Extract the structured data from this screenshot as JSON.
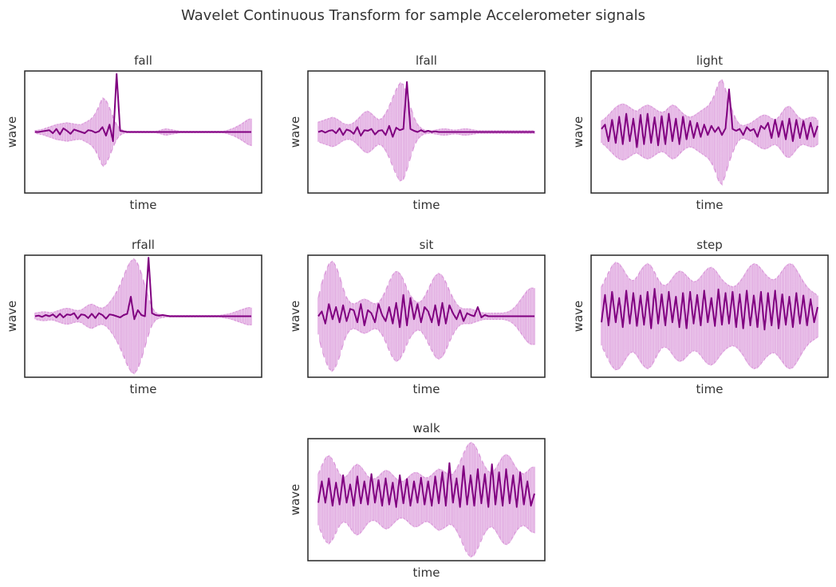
{
  "chart_data": {
    "type": "line",
    "title": "Wavelet Continuous Transform for sample Accelerometer signals",
    "xlabel": "time",
    "ylabel": "wave",
    "colors": {
      "envelope": "#dda0dd",
      "signal": "#800080",
      "frame": "#262626"
    },
    "ticks": "hidden",
    "panels": [
      {
        "title": "fall",
        "ylim": [
          -1.0,
          1.0
        ],
        "signal": [
          0,
          0,
          0.01,
          0.02,
          0.03,
          -0.02,
          0.05,
          -0.04,
          0.06,
          0.02,
          -0.03,
          0.04,
          0.02,
          0.0,
          -0.02,
          0.03,
          0.02,
          -0.01,
          0.01,
          0.08,
          -0.06,
          0.12,
          -0.15,
          0.95,
          0.02,
          0.01,
          0.0,
          0,
          0,
          0,
          0,
          0,
          0,
          0,
          0,
          0,
          0,
          0,
          0,
          0,
          0,
          0,
          0,
          0,
          0,
          0,
          0,
          0,
          0,
          0,
          0,
          0,
          0,
          0,
          0,
          0,
          0,
          0,
          0,
          0,
          0,
          0
        ],
        "envelope": [
          0.02,
          0.03,
          0.04,
          0.06,
          0.08,
          0.1,
          0.12,
          0.13,
          0.14,
          0.15,
          0.14,
          0.13,
          0.12,
          0.12,
          0.15,
          0.18,
          0.22,
          0.3,
          0.42,
          0.56,
          0.52,
          0.4,
          0.25,
          0.12,
          0.05,
          0.02,
          0.01,
          0.01,
          0.01,
          0.01,
          0.01,
          0.01,
          0.01,
          0.01,
          0.01,
          0.02,
          0.04,
          0.05,
          0.04,
          0.03,
          0.02,
          0.01,
          0.01,
          0.01,
          0.01,
          0.01,
          0.01,
          0.01,
          0.01,
          0.01,
          0.01,
          0.01,
          0.01,
          0.01,
          0.02,
          0.04,
          0.06,
          0.09,
          0.12,
          0.16,
          0.2,
          0.22
        ]
      },
      {
        "title": "lfall",
        "ylim": [
          -1.0,
          1.0
        ],
        "signal": [
          0.0,
          0.02,
          -0.01,
          0.02,
          0.03,
          -0.02,
          0.06,
          -0.05,
          0.04,
          0.02,
          -0.03,
          0.08,
          -0.06,
          0.03,
          0.02,
          0.05,
          -0.04,
          0.02,
          0.03,
          -0.05,
          0.1,
          -0.08,
          0.07,
          0.03,
          0.05,
          0.82,
          0.05,
          0.02,
          0.0,
          0.03,
          0.0,
          0.02,
          0.0,
          0.01,
          0.0,
          0,
          0,
          0,
          0,
          0,
          0,
          0,
          0,
          0,
          0,
          0,
          0,
          0,
          0,
          0,
          0,
          0,
          0,
          0,
          0,
          0,
          0,
          0,
          0,
          0,
          0,
          0
        ],
        "envelope": [
          0.16,
          0.18,
          0.2,
          0.22,
          0.24,
          0.22,
          0.18,
          0.14,
          0.12,
          0.12,
          0.15,
          0.2,
          0.26,
          0.32,
          0.34,
          0.3,
          0.24,
          0.2,
          0.22,
          0.3,
          0.42,
          0.56,
          0.7,
          0.8,
          0.78,
          0.62,
          0.42,
          0.24,
          0.12,
          0.06,
          0.03,
          0.02,
          0.02,
          0.03,
          0.04,
          0.05,
          0.05,
          0.04,
          0.03,
          0.03,
          0.04,
          0.05,
          0.05,
          0.04,
          0.03,
          0.02,
          0.02,
          0.02,
          0.02,
          0.02,
          0.02,
          0.02,
          0.02,
          0.02,
          0.02,
          0.02,
          0.02,
          0.02,
          0.02,
          0.02,
          0.02,
          0.02
        ]
      },
      {
        "title": "light",
        "ylim": [
          -1.0,
          1.0
        ],
        "signal": [
          0.05,
          0.12,
          -0.15,
          0.2,
          -0.18,
          0.25,
          -0.2,
          0.3,
          -0.15,
          0.22,
          -0.25,
          0.28,
          -0.2,
          0.3,
          -0.18,
          0.24,
          -0.22,
          0.26,
          -0.2,
          0.3,
          -0.15,
          0.22,
          -0.2,
          0.25,
          -0.12,
          0.18,
          -0.1,
          0.15,
          -0.08,
          0.12,
          -0.05,
          0.1,
          0.0,
          0.08,
          -0.05,
          0.06,
          0.7,
          0.05,
          0.02,
          0.05,
          -0.05,
          0.08,
          0.02,
          0.05,
          -0.08,
          0.1,
          0.05,
          0.15,
          -0.1,
          0.2,
          -0.08,
          0.18,
          -0.12,
          0.22,
          -0.15,
          0.2,
          -0.1,
          0.18,
          -0.12,
          0.15,
          -0.08,
          0.1
        ],
        "envelope": [
          0.18,
          0.22,
          0.28,
          0.34,
          0.4,
          0.44,
          0.46,
          0.44,
          0.4,
          0.36,
          0.34,
          0.38,
          0.42,
          0.44,
          0.42,
          0.38,
          0.34,
          0.32,
          0.34,
          0.4,
          0.44,
          0.42,
          0.36,
          0.3,
          0.26,
          0.24,
          0.26,
          0.3,
          0.34,
          0.38,
          0.42,
          0.5,
          0.62,
          0.8,
          0.86,
          0.7,
          0.5,
          0.34,
          0.2,
          0.12,
          0.1,
          0.12,
          0.14,
          0.18,
          0.22,
          0.26,
          0.28,
          0.26,
          0.22,
          0.2,
          0.24,
          0.32,
          0.4,
          0.42,
          0.36,
          0.28,
          0.22,
          0.2,
          0.22,
          0.24,
          0.24,
          0.2
        ]
      },
      {
        "title": "rfall",
        "ylim": [
          -1.0,
          1.0
        ],
        "signal": [
          0.0,
          0.01,
          -0.01,
          0.02,
          0.0,
          0.03,
          -0.02,
          0.04,
          -0.02,
          0.03,
          0.02,
          0.05,
          -0.04,
          0.03,
          0.02,
          -0.03,
          0.04,
          -0.03,
          0.05,
          0.02,
          -0.04,
          0.03,
          0.02,
          0.0,
          -0.02,
          0.02,
          0.04,
          0.32,
          -0.05,
          0.1,
          0.02,
          0.0,
          0.96,
          0.05,
          0.02,
          0.01,
          0.02,
          0.01,
          0,
          0,
          0,
          0,
          0,
          0,
          0,
          0,
          0,
          0,
          0,
          0,
          0,
          0,
          0,
          0,
          0,
          0,
          0,
          0,
          0,
          0,
          0,
          0
        ],
        "envelope": [
          0.05,
          0.06,
          0.07,
          0.07,
          0.06,
          0.06,
          0.08,
          0.1,
          0.12,
          0.13,
          0.12,
          0.1,
          0.09,
          0.1,
          0.14,
          0.18,
          0.2,
          0.17,
          0.14,
          0.13,
          0.16,
          0.22,
          0.3,
          0.4,
          0.52,
          0.66,
          0.8,
          0.9,
          0.94,
          0.86,
          0.7,
          0.5,
          0.3,
          0.14,
          0.06,
          0.03,
          0.02,
          0.01,
          0.01,
          0.01,
          0.01,
          0.01,
          0.01,
          0.01,
          0.01,
          0.01,
          0.01,
          0.01,
          0.01,
          0.01,
          0.01,
          0.01,
          0.01,
          0.02,
          0.03,
          0.04,
          0.06,
          0.08,
          0.1,
          0.12,
          0.14,
          0.14
        ]
      },
      {
        "title": "sit",
        "ylim": [
          -1.0,
          1.0
        ],
        "signal": [
          0.0,
          0.08,
          -0.12,
          0.2,
          -0.05,
          0.15,
          -0.1,
          0.18,
          -0.08,
          0.12,
          0.1,
          -0.1,
          0.2,
          -0.15,
          0.1,
          0.05,
          -0.1,
          0.2,
          0.02,
          -0.08,
          0.15,
          -0.12,
          0.22,
          -0.18,
          0.35,
          -0.15,
          0.3,
          -0.05,
          0.2,
          -0.1,
          0.15,
          0.08,
          -0.1,
          0.18,
          -0.15,
          0.22,
          -0.12,
          0.18,
          0.05,
          -0.05,
          0.1,
          -0.08,
          0.05,
          0.02,
          0.0,
          0.15,
          -0.02,
          0.02,
          0.0,
          0,
          0,
          0,
          0,
          0,
          0,
          0,
          0,
          0,
          0,
          0,
          0,
          0
        ],
        "envelope": [
          0.3,
          0.55,
          0.72,
          0.86,
          0.9,
          0.82,
          0.66,
          0.46,
          0.3,
          0.22,
          0.2,
          0.22,
          0.26,
          0.28,
          0.26,
          0.22,
          0.2,
          0.22,
          0.3,
          0.42,
          0.56,
          0.68,
          0.74,
          0.7,
          0.6,
          0.46,
          0.34,
          0.26,
          0.22,
          0.24,
          0.32,
          0.44,
          0.56,
          0.66,
          0.7,
          0.66,
          0.56,
          0.42,
          0.3,
          0.2,
          0.14,
          0.12,
          0.12,
          0.12,
          0.1,
          0.08,
          0.06,
          0.05,
          0.05,
          0.05,
          0.05,
          0.05,
          0.05,
          0.06,
          0.08,
          0.12,
          0.18,
          0.26,
          0.34,
          0.42,
          0.46,
          0.46
        ]
      },
      {
        "title": "step",
        "ylim": [
          -1.0,
          1.0
        ],
        "signal": [
          -0.1,
          0.35,
          -0.15,
          0.4,
          -0.1,
          0.3,
          -0.18,
          0.42,
          -0.12,
          0.38,
          -0.16,
          0.34,
          -0.14,
          0.4,
          -0.2,
          0.45,
          -0.12,
          0.36,
          -0.15,
          0.4,
          -0.1,
          0.32,
          -0.18,
          0.38,
          -0.2,
          0.4,
          -0.12,
          0.35,
          -0.15,
          0.42,
          -0.1,
          0.3,
          -0.16,
          0.44,
          -0.14,
          0.38,
          -0.12,
          0.4,
          -0.18,
          0.36,
          -0.2,
          0.42,
          -0.15,
          0.34,
          -0.18,
          0.4,
          -0.22,
          0.38,
          -0.15,
          0.42,
          -0.2,
          0.36,
          -0.14,
          0.32,
          -0.18,
          0.38,
          -0.12,
          0.34,
          -0.15,
          0.28,
          -0.1,
          0.15
        ],
        "envelope": [
          0.48,
          0.6,
          0.72,
          0.82,
          0.88,
          0.86,
          0.78,
          0.68,
          0.6,
          0.58,
          0.64,
          0.74,
          0.82,
          0.86,
          0.82,
          0.72,
          0.6,
          0.52,
          0.5,
          0.54,
          0.62,
          0.7,
          0.74,
          0.72,
          0.66,
          0.6,
          0.56,
          0.58,
          0.64,
          0.72,
          0.78,
          0.8,
          0.76,
          0.68,
          0.6,
          0.54,
          0.5,
          0.48,
          0.5,
          0.56,
          0.64,
          0.74,
          0.82,
          0.86,
          0.84,
          0.78,
          0.7,
          0.64,
          0.6,
          0.6,
          0.66,
          0.74,
          0.82,
          0.86,
          0.84,
          0.76,
          0.66,
          0.56,
          0.48,
          0.42,
          0.38,
          0.34
        ]
      },
      {
        "title": "walk",
        "ylim": [
          -1.0,
          1.0
        ],
        "signal": [
          -0.05,
          0.3,
          -0.05,
          0.35,
          -0.1,
          0.28,
          -0.08,
          0.4,
          -0.05,
          0.25,
          -0.1,
          0.38,
          -0.06,
          0.3,
          -0.08,
          0.42,
          -0.05,
          0.32,
          -0.1,
          0.35,
          -0.08,
          0.28,
          -0.12,
          0.4,
          -0.06,
          0.34,
          -0.1,
          0.3,
          -0.05,
          0.36,
          -0.08,
          0.3,
          -0.1,
          0.38,
          -0.06,
          0.45,
          -0.1,
          0.6,
          -0.05,
          0.35,
          -0.12,
          0.55,
          -0.08,
          0.4,
          -0.1,
          0.5,
          -0.06,
          0.42,
          -0.12,
          0.58,
          -0.08,
          0.45,
          -0.1,
          0.5,
          -0.06,
          0.4,
          -0.12,
          0.45,
          -0.08,
          0.3,
          -0.1,
          0.1
        ],
        "envelope": [
          0.42,
          0.56,
          0.68,
          0.72,
          0.66,
          0.54,
          0.42,
          0.36,
          0.38,
          0.46,
          0.54,
          0.58,
          0.54,
          0.46,
          0.38,
          0.34,
          0.34,
          0.38,
          0.44,
          0.48,
          0.46,
          0.4,
          0.34,
          0.3,
          0.3,
          0.34,
          0.4,
          0.44,
          0.44,
          0.4,
          0.36,
          0.36,
          0.4,
          0.46,
          0.5,
          0.48,
          0.44,
          0.4,
          0.42,
          0.5,
          0.62,
          0.76,
          0.88,
          0.94,
          0.9,
          0.8,
          0.66,
          0.54,
          0.46,
          0.44,
          0.5,
          0.6,
          0.7,
          0.74,
          0.7,
          0.6,
          0.5,
          0.44,
          0.42,
          0.46,
          0.52,
          0.54
        ]
      }
    ]
  }
}
